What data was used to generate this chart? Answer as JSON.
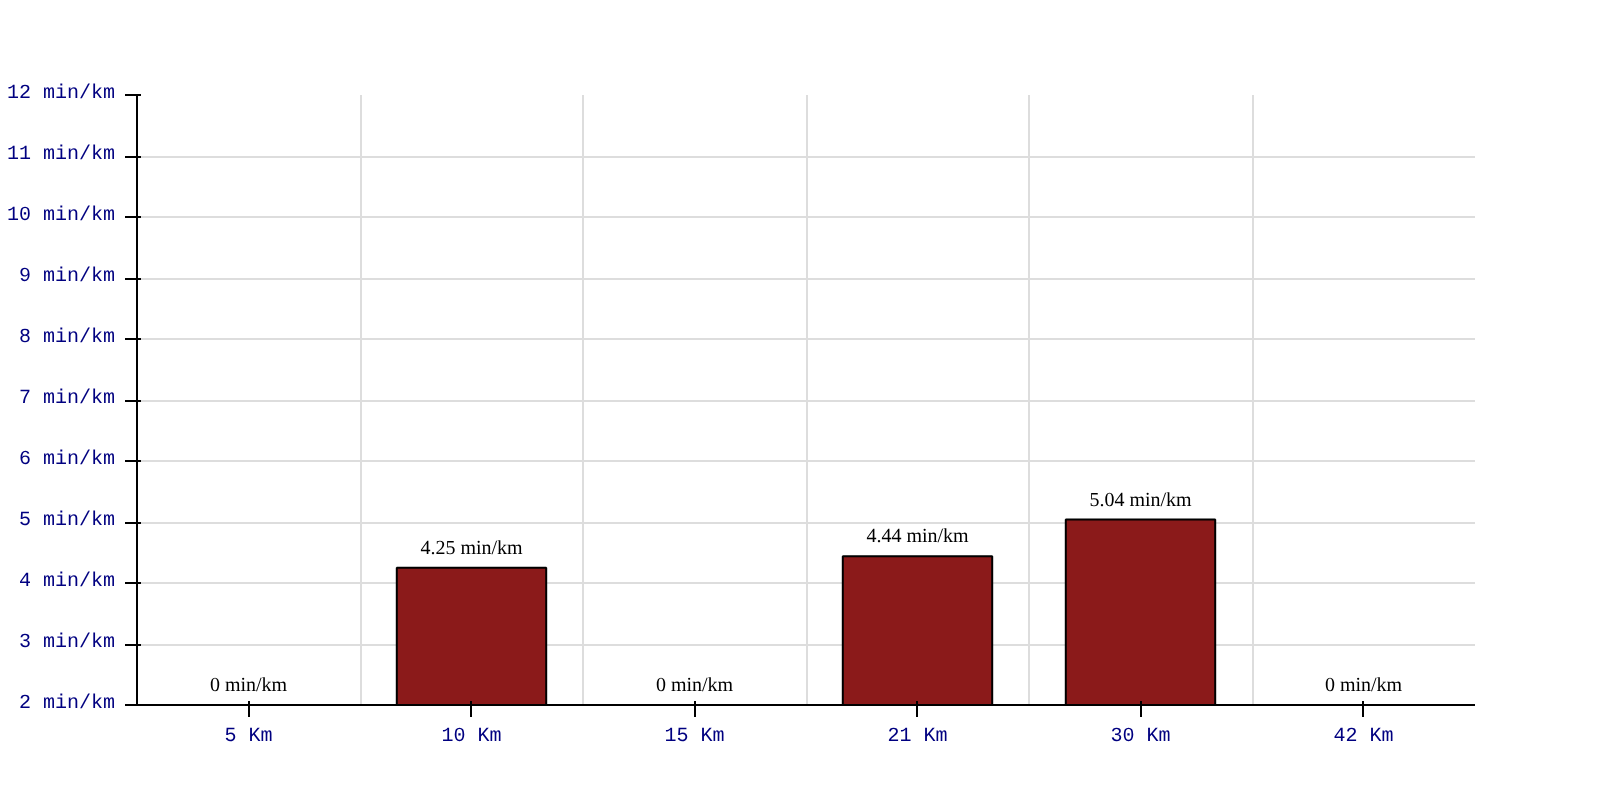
{
  "chart_data": {
    "type": "bar",
    "categories": [
      "5 Km",
      "10 Km",
      "15 Km",
      "21 Km",
      "30 Km",
      "42 Km"
    ],
    "values": [
      null,
      4.25,
      null,
      4.44,
      5.04,
      null
    ],
    "value_labels": [
      "0 min/km",
      "4.25 min/km",
      "0 min/km",
      "4.44 min/km",
      "5.04 min/km",
      "0 min/km"
    ],
    "color": "#8b1a1a",
    "ylim": [
      2,
      12
    ],
    "yticks": [
      {
        "value": 2,
        "label": "2 min/km"
      },
      {
        "value": 3,
        "label": "3 min/km"
      },
      {
        "value": 4,
        "label": "4 min/km"
      },
      {
        "value": 5,
        "label": "5 min/km"
      },
      {
        "value": 6,
        "label": "6 min/km"
      },
      {
        "value": 7,
        "label": "7 min/km"
      },
      {
        "value": 8,
        "label": "8 min/km"
      },
      {
        "value": 9,
        "label": "9 min/km"
      },
      {
        "value": 10,
        "label": "10 min/km"
      },
      {
        "value": 11,
        "label": "11 min/km"
      },
      {
        "value": 12,
        "label": "12 min/km"
      }
    ],
    "grid": true
  }
}
